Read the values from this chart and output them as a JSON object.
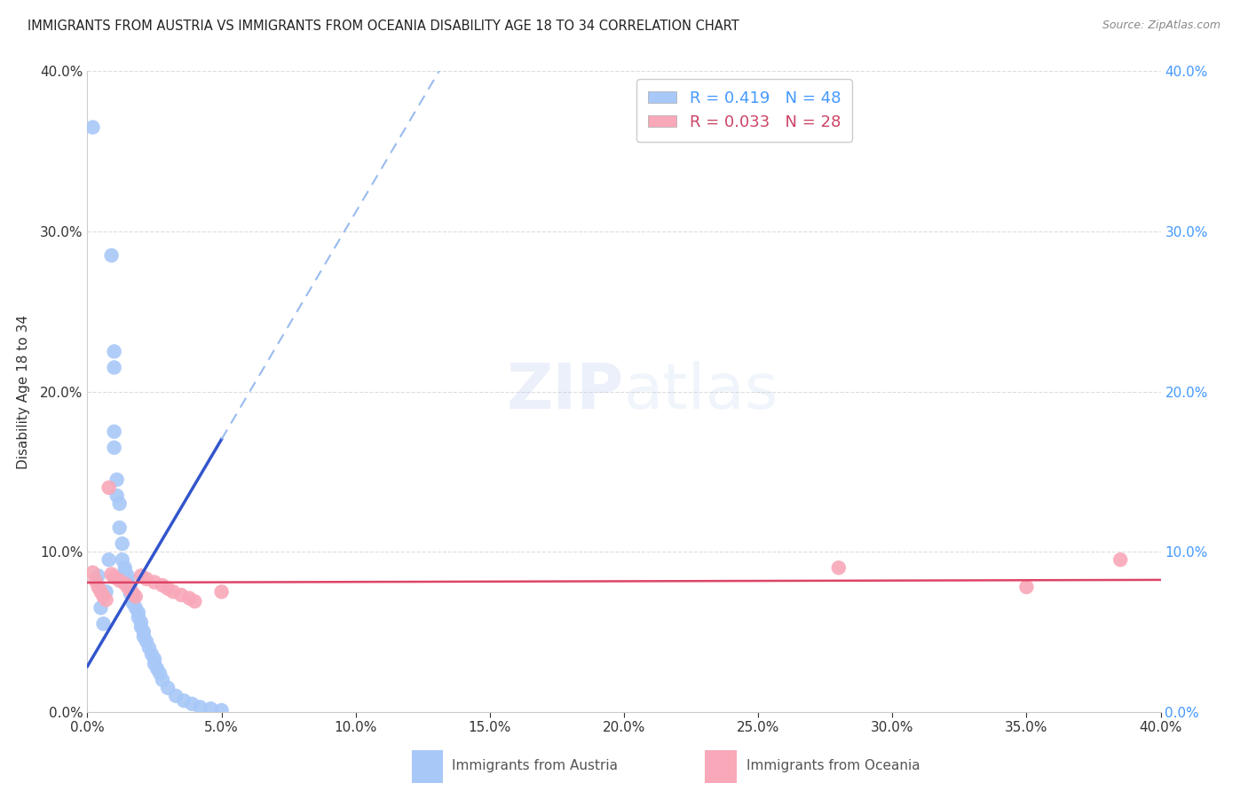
{
  "title": "IMMIGRANTS FROM AUSTRIA VS IMMIGRANTS FROM OCEANIA DISABILITY AGE 18 TO 34 CORRELATION CHART",
  "source": "Source: ZipAtlas.com",
  "ylabel": "Disability Age 18 to 34",
  "xlim": [
    0.0,
    0.4
  ],
  "ylim": [
    0.0,
    0.4
  ],
  "x_ticks": [
    0.0,
    0.05,
    0.1,
    0.15,
    0.2,
    0.25,
    0.3,
    0.35,
    0.4
  ],
  "y_ticks": [
    0.0,
    0.1,
    0.2,
    0.3,
    0.4
  ],
  "austria_R": 0.419,
  "austria_N": 48,
  "oceania_R": 0.033,
  "oceania_N": 28,
  "austria_color": "#a8c8f8",
  "oceania_color": "#f8a8b8",
  "austria_line_color": "#3355cc",
  "oceania_line_color": "#dd4466",
  "austria_dashed_color": "#99bbee",
  "background_color": "#ffffff",
  "grid_color": "#dddddd",
  "watermark_zip": "ZIP",
  "watermark_atlas": "atlas",
  "austria_x": [
    0.002,
    0.004,
    0.005,
    0.006,
    0.007,
    0.008,
    0.009,
    0.01,
    0.01,
    0.01,
    0.01,
    0.011,
    0.011,
    0.012,
    0.012,
    0.013,
    0.013,
    0.014,
    0.014,
    0.015,
    0.015,
    0.015,
    0.016,
    0.016,
    0.017,
    0.017,
    0.018,
    0.019,
    0.019,
    0.02,
    0.02,
    0.021,
    0.021,
    0.022,
    0.023,
    0.024,
    0.025,
    0.025,
    0.026,
    0.027,
    0.028,
    0.03,
    0.033,
    0.036,
    0.039,
    0.042,
    0.046,
    0.05
  ],
  "austria_y": [
    0.365,
    0.085,
    0.065,
    0.055,
    0.075,
    0.095,
    0.285,
    0.225,
    0.215,
    0.175,
    0.165,
    0.145,
    0.135,
    0.13,
    0.115,
    0.105,
    0.095,
    0.09,
    0.088,
    0.085,
    0.082,
    0.08,
    0.077,
    0.074,
    0.071,
    0.068,
    0.065,
    0.062,
    0.059,
    0.056,
    0.053,
    0.05,
    0.047,
    0.044,
    0.04,
    0.036,
    0.033,
    0.03,
    0.027,
    0.024,
    0.02,
    0.015,
    0.01,
    0.007,
    0.005,
    0.003,
    0.002,
    0.001
  ],
  "oceania_x": [
    0.002,
    0.003,
    0.004,
    0.005,
    0.006,
    0.007,
    0.008,
    0.009,
    0.01,
    0.012,
    0.014,
    0.015,
    0.016,
    0.017,
    0.018,
    0.02,
    0.022,
    0.025,
    0.028,
    0.03,
    0.032,
    0.035,
    0.038,
    0.04,
    0.05,
    0.28,
    0.35,
    0.385
  ],
  "oceania_y": [
    0.087,
    0.082,
    0.078,
    0.075,
    0.072,
    0.07,
    0.14,
    0.086,
    0.084,
    0.082,
    0.08,
    0.078,
    0.076,
    0.074,
    0.072,
    0.085,
    0.083,
    0.081,
    0.079,
    0.077,
    0.075,
    0.073,
    0.071,
    0.069,
    0.075,
    0.09,
    0.078,
    0.095
  ],
  "legend_text_color_1": "#4499ff",
  "legend_text_color_2": "#cc4466",
  "right_tick_color": "#4499ff",
  "left_tick_color": "#333333",
  "bottom_tick_color": "#333333"
}
